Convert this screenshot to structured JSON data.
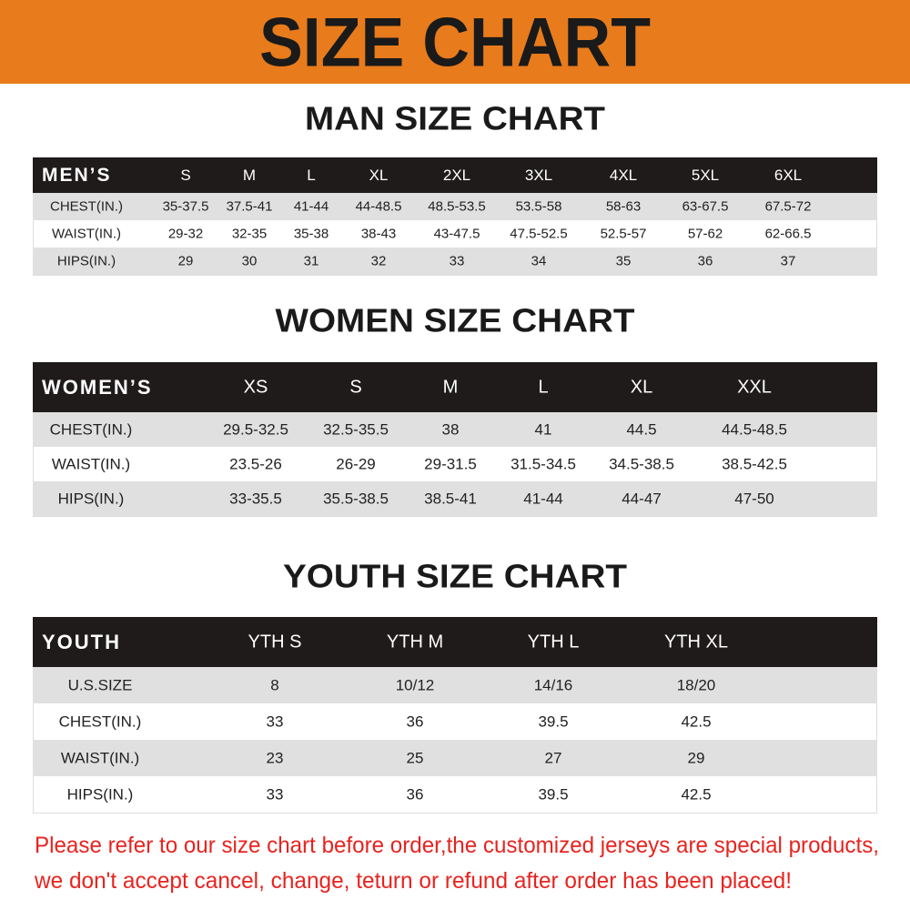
{
  "header": {
    "title": "SIZE CHART"
  },
  "sections": [
    {
      "title": "MAN SIZE CHART",
      "table": {
        "columns": [
          "MEN’S",
          "S",
          "M",
          "L",
          "XL",
          "2XL",
          "3XL",
          "4XL",
          "5XL",
          "6XL"
        ],
        "rows": [
          [
            "CHEST(IN.)",
            "35-37.5",
            "37.5-41",
            "41-44",
            "44-48.5",
            "48.5-53.5",
            "53.5-58",
            "58-63",
            "63-67.5",
            "67.5-72"
          ],
          [
            "WAIST(IN.)",
            "29-32",
            "32-35",
            "35-38",
            "38-43",
            "43-47.5",
            "47.5-52.5",
            "52.5-57",
            "57-62",
            "62-66.5"
          ],
          [
            "HIPS(IN.)",
            "29",
            "30",
            "31",
            "32",
            "33",
            "34",
            "35",
            "36",
            "37"
          ]
        ]
      }
    },
    {
      "title": "WOMEN SIZE CHART",
      "table": {
        "columns": [
          "WOMEN’S",
          "XS",
          "S",
          "M",
          "L",
          "XL",
          "XXL"
        ],
        "rows": [
          [
            "CHEST(IN.)",
            "29.5-32.5",
            "32.5-35.5",
            "38",
            "41",
            "44.5",
            "44.5-48.5"
          ],
          [
            "WAIST(IN.)",
            "23.5-26",
            "26-29",
            "29-31.5",
            "31.5-34.5",
            "34.5-38.5",
            "38.5-42.5"
          ],
          [
            "HIPS(IN.)",
            "33-35.5",
            "35.5-38.5",
            "38.5-41",
            "41-44",
            "44-47",
            "47-50"
          ]
        ]
      }
    },
    {
      "title": "YOUTH SIZE CHART",
      "table": {
        "columns": [
          "YOUTH",
          "YTH S",
          "YTH M",
          "YTH L",
          "YTH XL"
        ],
        "rows": [
          [
            "U.S.SIZE",
            "8",
            "10/12",
            "14/16",
            "18/20"
          ],
          [
            "CHEST(IN.)",
            "33",
            "36",
            "39.5",
            "42.5"
          ],
          [
            "WAIST(IN.)",
            "23",
            "25",
            "27",
            "29"
          ],
          [
            "HIPS(IN.)",
            "33",
            "36",
            "39.5",
            "42.5"
          ]
        ]
      }
    }
  ],
  "footer": {
    "lines": [
      "Please refer to our size chart before order,the customized jerseys are special products,",
      "we don't accept cancel, change, teturn or refund after order has been placed!"
    ]
  }
}
